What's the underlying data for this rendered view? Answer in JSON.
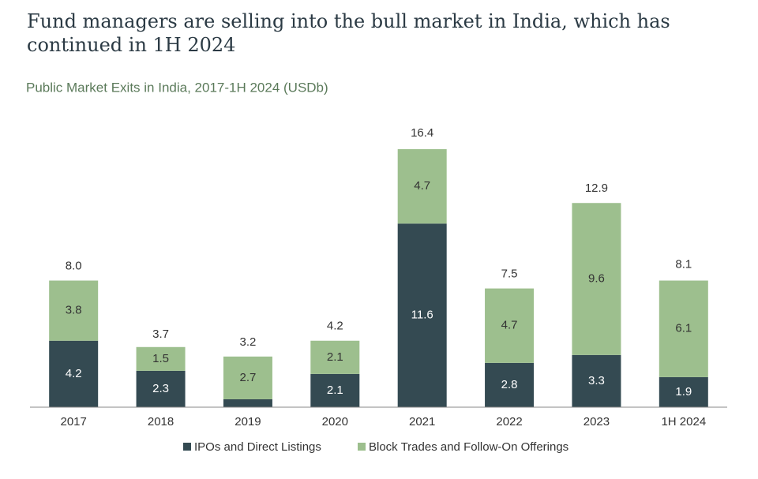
{
  "chart_data": {
    "type": "stacked_bar",
    "title": "Fund managers are selling into the bull market in India, which has continued in 1H 2024",
    "subtitle": "Public Market Exits in India, 2017-1H 2024 (USDb)",
    "categories": [
      "2017",
      "2018",
      "2019",
      "2020",
      "2021",
      "2022",
      "2023",
      "1H 2024"
    ],
    "series": [
      {
        "name": "IPOs and Direct Listings",
        "color": "#344a52",
        "values": [
          4.2,
          2.3,
          0.5,
          2.1,
          11.6,
          2.8,
          3.3,
          1.9
        ],
        "value_labels": [
          "4.2",
          "2.3",
          null,
          "2.1",
          "11.6",
          "2.8",
          "3.3",
          "1.9"
        ]
      },
      {
        "name": "Block Trades and Follow-On Offerings",
        "color": "#9dbf8e",
        "values": [
          3.8,
          1.5,
          2.7,
          2.1,
          4.7,
          4.7,
          9.6,
          6.1
        ]
      }
    ],
    "totals": {
      "values": [
        8.0,
        3.7,
        3.2,
        4.2,
        16.4,
        7.5,
        12.9,
        8.1
      ],
      "value_labels": [
        "8.0",
        "3.7",
        "3.2",
        "4.2",
        "16.4",
        "7.5",
        "12.9",
        "8.1"
      ]
    },
    "ylim": [
      0,
      17
    ]
  }
}
